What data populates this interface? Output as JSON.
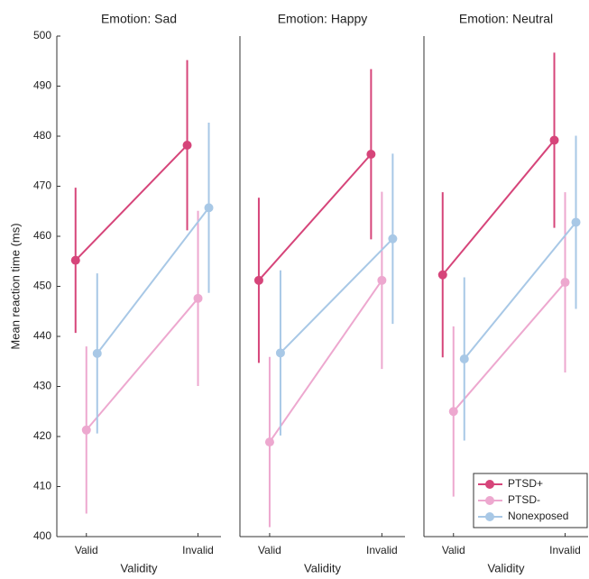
{
  "chart_data": [
    {
      "type": "line",
      "title": "Emotion: Sad",
      "xlabel": "Validity",
      "ylabel": "Mean reaction time (ms)",
      "categories": [
        "Valid",
        "Invalid"
      ],
      "ylim": [
        400,
        500
      ],
      "yticks": [
        400,
        410,
        420,
        430,
        440,
        450,
        460,
        470,
        480,
        490,
        500
      ],
      "series": [
        {
          "color": "#d6457a",
          "values": [
            455.2,
            478.2
          ],
          "errors": [
            14.5,
            17
          ]
        },
        {
          "color": "#eda8cf",
          "values": [
            421.3,
            447.6
          ],
          "errors": [
            16.7,
            17.5
          ]
        },
        {
          "color": "#a8c8e6",
          "values": [
            436.6,
            465.7
          ],
          "errors": [
            16,
            17
          ]
        }
      ]
    },
    {
      "type": "line",
      "title": "Emotion: Happy",
      "xlabel": "Validity",
      "categories": [
        "Valid",
        "Invalid"
      ],
      "ylim": [
        400,
        500
      ],
      "series": [
        {
          "color": "#d6457a",
          "values": [
            451.2,
            476.4
          ],
          "errors": [
            16.5,
            17
          ]
        },
        {
          "color": "#eda8cf",
          "values": [
            418.9,
            451.2
          ],
          "errors": [
            17,
            17.7
          ]
        },
        {
          "color": "#a8c8e6",
          "values": [
            436.7,
            459.5
          ],
          "errors": [
            16.5,
            17
          ]
        }
      ]
    },
    {
      "type": "line",
      "title": "Emotion: Neutral",
      "xlabel": "Validity",
      "categories": [
        "Valid",
        "Invalid"
      ],
      "ylim": [
        400,
        500
      ],
      "legend": "lower right",
      "series": [
        {
          "name": "PTSD+",
          "color": "#d6457a",
          "values": [
            452.3,
            479.2
          ],
          "errors": [
            16.5,
            17.5
          ]
        },
        {
          "name": "PTSD-",
          "color": "#eda8cf",
          "values": [
            425,
            450.8
          ],
          "errors": [
            17,
            18
          ]
        },
        {
          "name": "Nonexposed",
          "color": "#a8c8e6",
          "values": [
            435.5,
            462.8
          ],
          "errors": [
            16.3,
            17.3
          ]
        }
      ]
    }
  ]
}
